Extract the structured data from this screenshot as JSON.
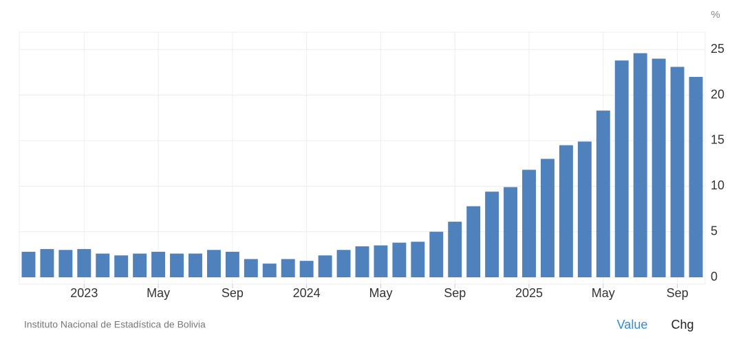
{
  "chart_data": {
    "type": "bar",
    "y_unit": "%",
    "categories": [
      null,
      null,
      null,
      "2023",
      null,
      null,
      null,
      "May",
      null,
      null,
      null,
      "Sep",
      null,
      null,
      null,
      "2024",
      null,
      null,
      null,
      "May",
      null,
      null,
      null,
      "Sep",
      null,
      null,
      null,
      "2025",
      null,
      null,
      null,
      "May",
      null,
      null,
      null,
      "Sep",
      null
    ],
    "values": [
      2.8,
      3.1,
      3.0,
      3.1,
      2.6,
      2.4,
      2.6,
      2.8,
      2.6,
      2.6,
      3.0,
      2.8,
      2.0,
      1.5,
      2.0,
      1.8,
      2.4,
      3.0,
      3.4,
      3.5,
      3.8,
      3.9,
      5.0,
      6.1,
      7.8,
      9.4,
      9.9,
      11.8,
      13.0,
      14.5,
      14.9,
      18.3,
      23.8,
      24.6,
      24.0,
      23.1,
      22.0
    ],
    "color": "#4f81bd",
    "ylim": [
      -0.75,
      26.9
    ],
    "yticks": [
      0,
      5,
      10,
      15,
      20,
      25
    ],
    "grid": true
  },
  "footer": {
    "source": "Instituto Nacional de Estadística de Bolivia",
    "buttons": [
      "Value",
      "Chg"
    ]
  }
}
